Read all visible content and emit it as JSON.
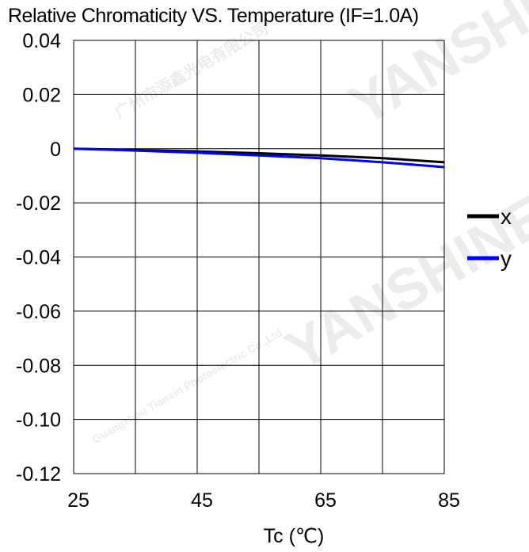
{
  "chart_data": {
    "type": "line",
    "title": "Relative Chromaticity VS. Temperature (IF=1.0A)",
    "xlabel": "Tc (℃)",
    "ylabel": "",
    "xlim": [
      25,
      85
    ],
    "ylim": [
      -0.12,
      0.04
    ],
    "x_ticks": [
      25,
      45,
      65,
      85
    ],
    "x_tick_labels": [
      "25",
      "45",
      "65",
      "85"
    ],
    "x_gridlines": [
      25,
      35,
      45,
      55,
      65,
      75,
      85
    ],
    "y_ticks": [
      0.04,
      0.02,
      0,
      -0.02,
      -0.04,
      -0.06,
      -0.08,
      -0.1,
      -0.12
    ],
    "y_tick_labels": [
      "0.04",
      "0.02",
      "0",
      "-0.02",
      "-0.04",
      "-0.06",
      "-0.08",
      "-0.10",
      "-0.12"
    ],
    "grid": true,
    "legend_position": "right",
    "series": [
      {
        "name": "x",
        "color": "#000000",
        "x": [
          25,
          35,
          45,
          55,
          65,
          75,
          85
        ],
        "values": [
          0.0,
          -0.0005,
          -0.001,
          -0.0017,
          -0.0025,
          -0.0035,
          -0.005
        ]
      },
      {
        "name": "y",
        "color": "#0000ff",
        "x": [
          25,
          35,
          45,
          55,
          65,
          75,
          85
        ],
        "values": [
          0.0,
          -0.0007,
          -0.0015,
          -0.0025,
          -0.0035,
          -0.005,
          -0.0068
        ]
      }
    ]
  },
  "watermarks": [
    "YANSHINE",
    "广州市添鑫光电有限公司",
    "Guangzhou Tianxin Photoelectric Co.,Ltd"
  ]
}
